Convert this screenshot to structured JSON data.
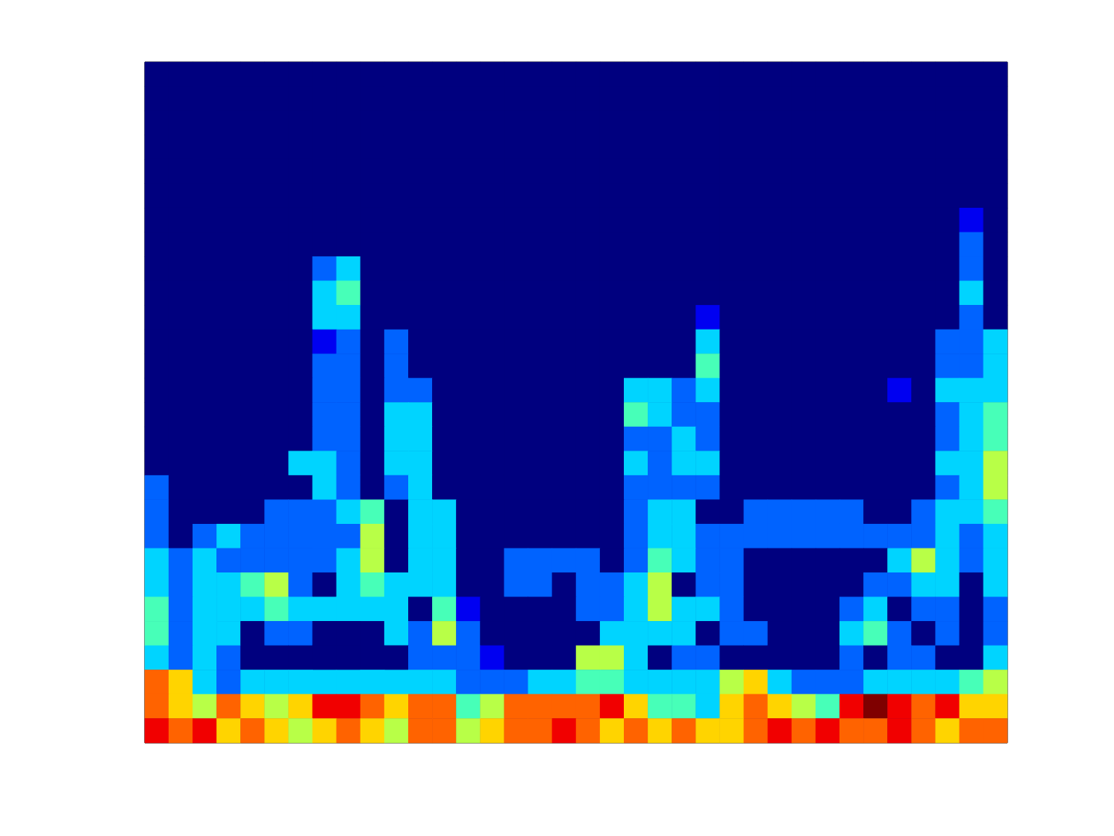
{
  "chart_data": {
    "type": "heatmap",
    "tick_labels": false,
    "color_range": [
      0,
      9
    ],
    "cells": [
      [
        0,
        0,
        0,
        0,
        0,
        0,
        0,
        0,
        0,
        0,
        0,
        0,
        0,
        0,
        0,
        0,
        0,
        0,
        0,
        0,
        0,
        0,
        0,
        0,
        0,
        0,
        0,
        0,
        0,
        0,
        0,
        0,
        0,
        0,
        0,
        0
      ],
      [
        0,
        0,
        0,
        0,
        0,
        0,
        0,
        0,
        0,
        0,
        0,
        0,
        0,
        0,
        0,
        0,
        0,
        0,
        0,
        0,
        0,
        0,
        0,
        0,
        0,
        0,
        0,
        0,
        0,
        0,
        0,
        0,
        0,
        0,
        0,
        0
      ],
      [
        0,
        0,
        0,
        0,
        0,
        0,
        0,
        0,
        0,
        0,
        0,
        0,
        0,
        0,
        0,
        0,
        0,
        0,
        0,
        0,
        0,
        0,
        0,
        0,
        0,
        0,
        0,
        0,
        0,
        0,
        0,
        0,
        0,
        0,
        0,
        0
      ],
      [
        0,
        0,
        0,
        0,
        0,
        0,
        0,
        0,
        0,
        0,
        0,
        0,
        0,
        0,
        0,
        0,
        0,
        0,
        0,
        0,
        0,
        0,
        0,
        0,
        0,
        0,
        0,
        0,
        0,
        0,
        0,
        0,
        0,
        0,
        0,
        0
      ],
      [
        0,
        0,
        0,
        0,
        0,
        0,
        0,
        0,
        0,
        0,
        0,
        0,
        0,
        0,
        0,
        0,
        0,
        0,
        0,
        0,
        0,
        0,
        0,
        0,
        0,
        0,
        0,
        0,
        0,
        0,
        0,
        0,
        0,
        0,
        0,
        0
      ],
      [
        0,
        0,
        0,
        0,
        0,
        0,
        0,
        0,
        0,
        0,
        0,
        0,
        0,
        0,
        0,
        0,
        0,
        0,
        0,
        0,
        0,
        0,
        0,
        0,
        0,
        0,
        0,
        0,
        0,
        0,
        0,
        0,
        0,
        0,
        0,
        0
      ],
      [
        0,
        0,
        0,
        0,
        0,
        0,
        0,
        0,
        0,
        0,
        0,
        0,
        0,
        0,
        0,
        0,
        0,
        0,
        0,
        0,
        0,
        0,
        0,
        0,
        0,
        0,
        0,
        0,
        0,
        0,
        0,
        0,
        0,
        0,
        1,
        0
      ],
      [
        0,
        0,
        0,
        0,
        0,
        0,
        0,
        0,
        0,
        0,
        0,
        0,
        0,
        0,
        0,
        0,
        0,
        0,
        0,
        0,
        0,
        0,
        0,
        0,
        0,
        0,
        0,
        0,
        0,
        0,
        0,
        0,
        0,
        0,
        2,
        0
      ],
      [
        0,
        0,
        0,
        0,
        0,
        0,
        0,
        2,
        3,
        0,
        0,
        0,
        0,
        0,
        0,
        0,
        0,
        0,
        0,
        0,
        0,
        0,
        0,
        0,
        0,
        0,
        0,
        0,
        0,
        0,
        0,
        0,
        0,
        0,
        2,
        0
      ],
      [
        0,
        0,
        0,
        0,
        0,
        0,
        0,
        3,
        4,
        0,
        0,
        0,
        0,
        0,
        0,
        0,
        0,
        0,
        0,
        0,
        0,
        0,
        0,
        0,
        0,
        0,
        0,
        0,
        0,
        0,
        0,
        0,
        0,
        0,
        3,
        0
      ],
      [
        0,
        0,
        0,
        0,
        0,
        0,
        0,
        3,
        3,
        0,
        0,
        0,
        0,
        0,
        0,
        0,
        0,
        0,
        0,
        0,
        0,
        0,
        0,
        1,
        0,
        0,
        0,
        0,
        0,
        0,
        0,
        0,
        0,
        0,
        2,
        0
      ],
      [
        0,
        0,
        0,
        0,
        0,
        0,
        0,
        1,
        2,
        0,
        2,
        0,
        0,
        0,
        0,
        0,
        0,
        0,
        0,
        0,
        0,
        0,
        0,
        3,
        0,
        0,
        0,
        0,
        0,
        0,
        0,
        0,
        0,
        2,
        2,
        3
      ],
      [
        0,
        0,
        0,
        0,
        0,
        0,
        0,
        2,
        2,
        0,
        2,
        0,
        0,
        0,
        0,
        0,
        0,
        0,
        0,
        0,
        0,
        0,
        0,
        4,
        0,
        0,
        0,
        0,
        0,
        0,
        0,
        0,
        0,
        2,
        2,
        3
      ],
      [
        0,
        0,
        0,
        0,
        0,
        0,
        0,
        2,
        2,
        0,
        2,
        2,
        0,
        0,
        0,
        0,
        0,
        0,
        0,
        0,
        3,
        3,
        2,
        3,
        0,
        0,
        0,
        0,
        0,
        0,
        0,
        1,
        0,
        3,
        3,
        3
      ],
      [
        0,
        0,
        0,
        0,
        0,
        0,
        0,
        2,
        2,
        0,
        3,
        3,
        0,
        0,
        0,
        0,
        0,
        0,
        0,
        0,
        4,
        3,
        2,
        2,
        0,
        0,
        0,
        0,
        0,
        0,
        0,
        0,
        0,
        2,
        3,
        4
      ],
      [
        0,
        0,
        0,
        0,
        0,
        0,
        0,
        2,
        2,
        0,
        3,
        3,
        0,
        0,
        0,
        0,
        0,
        0,
        0,
        0,
        2,
        2,
        3,
        2,
        0,
        0,
        0,
        0,
        0,
        0,
        0,
        0,
        0,
        2,
        3,
        4
      ],
      [
        0,
        0,
        0,
        0,
        0,
        0,
        3,
        3,
        2,
        0,
        3,
        3,
        0,
        0,
        0,
        0,
        0,
        0,
        0,
        0,
        3,
        2,
        3,
        3,
        0,
        0,
        0,
        0,
        0,
        0,
        0,
        0,
        0,
        3,
        3,
        5
      ],
      [
        2,
        0,
        0,
        0,
        0,
        0,
        0,
        3,
        2,
        0,
        2,
        3,
        0,
        0,
        0,
        0,
        0,
        0,
        0,
        0,
        2,
        2,
        2,
        2,
        0,
        0,
        0,
        0,
        0,
        0,
        0,
        0,
        0,
        2,
        3,
        5
      ],
      [
        2,
        0,
        0,
        0,
        0,
        2,
        2,
        2,
        3,
        4,
        0,
        3,
        3,
        0,
        0,
        0,
        0,
        0,
        0,
        0,
        2,
        3,
        3,
        0,
        0,
        2,
        2,
        2,
        2,
        2,
        0,
        0,
        2,
        3,
        3,
        4
      ],
      [
        2,
        0,
        2,
        3,
        2,
        2,
        2,
        2,
        2,
        5,
        0,
        3,
        3,
        0,
        0,
        0,
        0,
        0,
        0,
        0,
        2,
        3,
        3,
        2,
        2,
        2,
        2,
        2,
        2,
        2,
        2,
        2,
        2,
        3,
        2,
        3
      ],
      [
        3,
        2,
        3,
        2,
        2,
        2,
        2,
        2,
        3,
        5,
        0,
        3,
        3,
        0,
        0,
        2,
        2,
        2,
        2,
        0,
        2,
        4,
        3,
        2,
        2,
        0,
        0,
        0,
        0,
        0,
        0,
        3,
        5,
        3,
        2,
        3
      ],
      [
        3,
        2,
        3,
        3,
        4,
        5,
        2,
        0,
        3,
        4,
        3,
        3,
        3,
        0,
        0,
        2,
        2,
        0,
        2,
        2,
        3,
        5,
        0,
        2,
        2,
        0,
        0,
        0,
        0,
        0,
        2,
        2,
        3,
        3,
        0,
        3
      ],
      [
        4,
        2,
        3,
        3,
        3,
        4,
        3,
        3,
        3,
        3,
        3,
        0,
        4,
        1,
        0,
        0,
        0,
        0,
        2,
        2,
        3,
        5,
        3,
        3,
        2,
        0,
        0,
        0,
        0,
        2,
        3,
        0,
        2,
        2,
        0,
        2
      ],
      [
        4,
        2,
        3,
        3,
        0,
        2,
        2,
        0,
        0,
        0,
        3,
        2,
        5,
        2,
        0,
        0,
        0,
        0,
        0,
        3,
        3,
        3,
        3,
        0,
        2,
        2,
        0,
        0,
        0,
        3,
        4,
        2,
        0,
        2,
        0,
        2
      ],
      [
        3,
        2,
        3,
        2,
        0,
        0,
        0,
        0,
        0,
        0,
        0,
        2,
        2,
        2,
        1,
        0,
        0,
        0,
        5,
        5,
        3,
        0,
        2,
        2,
        0,
        0,
        0,
        0,
        0,
        2,
        0,
        2,
        2,
        0,
        0,
        3
      ],
      [
        7,
        6,
        3,
        2,
        3,
        3,
        3,
        3,
        3,
        3,
        3,
        3,
        3,
        2,
        2,
        2,
        3,
        3,
        4,
        4,
        3,
        3,
        3,
        3,
        5,
        6,
        3,
        2,
        2,
        2,
        3,
        3,
        3,
        3,
        4,
        5
      ],
      [
        7,
        6,
        5,
        7,
        6,
        5,
        6,
        8,
        8,
        7,
        6,
        7,
        7,
        4,
        5,
        7,
        7,
        7,
        7,
        8,
        6,
        4,
        4,
        3,
        6,
        7,
        6,
        5,
        4,
        8,
        9,
        8,
        7,
        8,
        6,
        6
      ],
      [
        8,
        7,
        8,
        6,
        7,
        6,
        5,
        6,
        7,
        6,
        5,
        7,
        7,
        5,
        6,
        7,
        7,
        8,
        7,
        6,
        7,
        6,
        7,
        6,
        6,
        7,
        8,
        7,
        8,
        7,
        7,
        8,
        7,
        6,
        7,
        7
      ]
    ]
  }
}
